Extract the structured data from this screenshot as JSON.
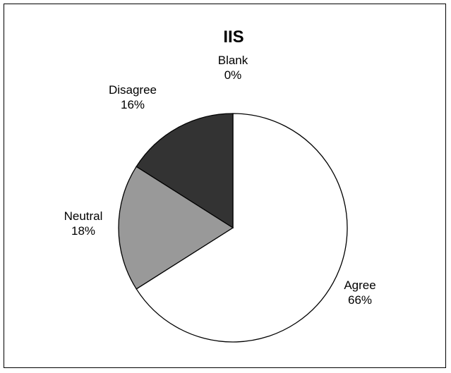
{
  "chart_data": {
    "type": "pie",
    "title": "IIS",
    "slices": [
      {
        "label": "Agree",
        "value": 66,
        "value_label": "66%",
        "color": "#ffffff"
      },
      {
        "label": "Neutral",
        "value": 18,
        "value_label": "18%",
        "color": "#999999"
      },
      {
        "label": "Disagree",
        "value": 16,
        "value_label": "16%",
        "color": "#333333"
      },
      {
        "label": "Blank",
        "value": 0,
        "value_label": "0%",
        "color": "#ffffff"
      }
    ],
    "legend": "none",
    "grid": false
  }
}
